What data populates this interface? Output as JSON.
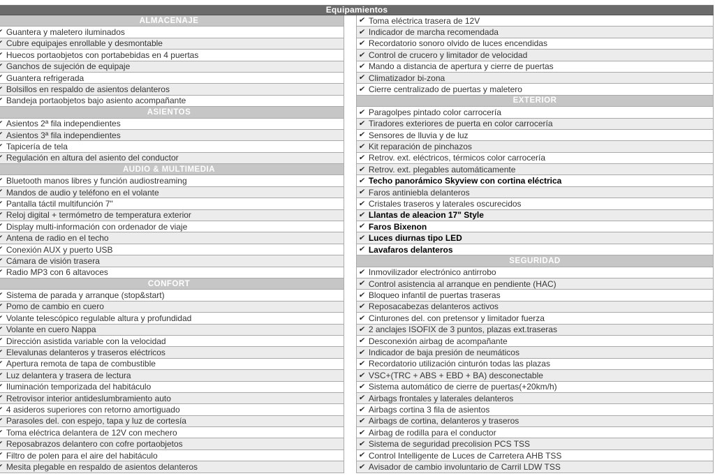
{
  "title": "Equipamientos",
  "check_icon": "✔",
  "colors": {
    "title_bar": "#6b6b6b",
    "section_header": "#c6c6c6",
    "row_white": "#ffffff",
    "row_alt": "#ececec",
    "border": "#a9a9a9",
    "title_text": "#ffffff",
    "item_text": "#353535"
  },
  "columns": {
    "left": [
      {
        "type": "section",
        "label": "ALMACENAJE"
      },
      {
        "type": "item",
        "label": "Guantera y maletero iluminados"
      },
      {
        "type": "item",
        "label": "Cubre equipajes enrollable y desmontable"
      },
      {
        "type": "item",
        "label": "Huecos portaobjetos con portabebidas en 4 puertas"
      },
      {
        "type": "item",
        "label": "Ganchos de sujeción de equipaje"
      },
      {
        "type": "item",
        "label": "Guantera refrigerada"
      },
      {
        "type": "item",
        "label": "Bolsillos en respaldo de asientos delanteros"
      },
      {
        "type": "item",
        "label": "Bandeja portaobjetos bajo asiento acompañante"
      },
      {
        "type": "section",
        "label": "ASIENTOS"
      },
      {
        "type": "item",
        "label": "Asientos 2ª fila independientes"
      },
      {
        "type": "item",
        "label": "Asientos 3ª fila independientes"
      },
      {
        "type": "item",
        "label": "Tapicería de tela"
      },
      {
        "type": "item",
        "label": "Regulación en altura del asiento del conductor"
      },
      {
        "type": "section",
        "label": "AUDIO & MULTIMEDIA"
      },
      {
        "type": "item",
        "label": "Bluetooth manos libres y función audiostreaming"
      },
      {
        "type": "item",
        "label": "Mandos de audio y teléfono en el volante"
      },
      {
        "type": "item",
        "label": "Pantalla táctil multifunción 7\""
      },
      {
        "type": "item",
        "label": "Reloj digital + termómetro de temperatura exterior"
      },
      {
        "type": "item",
        "label": "Display multi-información con ordenador de viaje"
      },
      {
        "type": "item",
        "label": "Antena de radio en el techo"
      },
      {
        "type": "item",
        "label": "Conexión AUX y puerto USB"
      },
      {
        "type": "item",
        "label": "Cámara de visión trasera"
      },
      {
        "type": "item",
        "label": "Radio MP3 con 6 altavoces"
      },
      {
        "type": "section",
        "label": "CONFORT"
      },
      {
        "type": "item",
        "label": "Sistema de parada y arranque (stop&start)"
      },
      {
        "type": "item",
        "label": "Pomo de cambio en cuero"
      },
      {
        "type": "item",
        "label": "Volante telescópico regulable altura y profundidad"
      },
      {
        "type": "item",
        "label": "Volante en cuero Nappa"
      },
      {
        "type": "item",
        "label": "Dirección asistida variable con la velocidad"
      },
      {
        "type": "item",
        "label": "Elevalunas delanteros y traseros eléctricos"
      },
      {
        "type": "item",
        "label": "Apertura remota de tapa de combustible"
      },
      {
        "type": "item",
        "label": "Luz delantera y trasera de lectura"
      },
      {
        "type": "item",
        "label": "Iluminación temporizada del habitáculo"
      },
      {
        "type": "item",
        "label": "Retrovisor interior antideslumbramiento auto"
      },
      {
        "type": "item",
        "label": "4 asideros superiores con retorno amortiguado"
      },
      {
        "type": "item",
        "label": "Parasoles del. con espejo, tapa y luz de cortesía"
      },
      {
        "type": "item",
        "label": "Toma eléctrica delantera de 12V con mechero"
      },
      {
        "type": "item",
        "label": "Reposabrazos delantero con cofre portaobjetos"
      },
      {
        "type": "item",
        "label": "Filtro de polen para el aire del habitáculo"
      },
      {
        "type": "item",
        "label": "Mesita plegable en respaldo de asientos delanteros"
      }
    ],
    "right": [
      {
        "type": "item",
        "label": "Toma eléctrica trasera de 12V"
      },
      {
        "type": "item",
        "label": "Indicador de marcha recomendada"
      },
      {
        "type": "item",
        "label": "Recordatorio sonoro olvido de luces encendidas"
      },
      {
        "type": "item",
        "label": "Control de crucero y limitador de velocidad"
      },
      {
        "type": "item",
        "label": "Mando a distancia de apertura y cierre de puertas"
      },
      {
        "type": "item",
        "label": "Climatizador bi-zona"
      },
      {
        "type": "item",
        "label": "Cierre centralizado de puertas y maletero"
      },
      {
        "type": "section",
        "label": "EXTERIOR"
      },
      {
        "type": "item",
        "label": "Paragolpes pintado color carrocería"
      },
      {
        "type": "item",
        "label": "Tiradores exteriores de puerta en color carrocería"
      },
      {
        "type": "item",
        "label": "Sensores de lluvia y de luz"
      },
      {
        "type": "item",
        "label": "Kit reparación de pinchazos"
      },
      {
        "type": "item",
        "label": "Retrov. ext. eléctricos, térmicos color carrocería"
      },
      {
        "type": "item",
        "label": "Retrov. ext. plegables automáticamente"
      },
      {
        "type": "item",
        "label": "Techo panorámico Skyview con cortina eléctrica",
        "bold": true
      },
      {
        "type": "item",
        "label": "Faros antiniebla delanteros"
      },
      {
        "type": "item",
        "label": "Cristales traseros y laterales oscurecidos"
      },
      {
        "type": "item",
        "label": "Llantas de aleacion 17\" Style",
        "bold": true
      },
      {
        "type": "item",
        "label": "Faros Bixenon",
        "bold": true
      },
      {
        "type": "item",
        "label": "Luces diurnas tipo LED",
        "bold": true
      },
      {
        "type": "item",
        "label": "Lavafaros delanteros",
        "bold": true
      },
      {
        "type": "section",
        "label": "SEGURIDAD"
      },
      {
        "type": "item",
        "label": "Inmovilizador electrónico antirrobo"
      },
      {
        "type": "item",
        "label": "Control asistencia al arranque en pendiente (HAC)"
      },
      {
        "type": "item",
        "label": "Bloqueo infantil de puertas traseras"
      },
      {
        "type": "item",
        "label": "Reposacabezas delanteros activos"
      },
      {
        "type": "item",
        "label": "Cinturones del. con pretensor y limitador fuerza"
      },
      {
        "type": "item",
        "label": "2 anclajes ISOFIX de 3 puntos, plazas ext.traseras"
      },
      {
        "type": "item",
        "label": "Desconexión airbag de acompañante"
      },
      {
        "type": "item",
        "label": "Indicador de baja presión de neumáticos"
      },
      {
        "type": "item",
        "label": "Recordatorio utilización cinturón todas las plazas"
      },
      {
        "type": "item",
        "label": "VSC+(TRC + ABS + EBD + BA) desconectable"
      },
      {
        "type": "item",
        "label": "Sistema automático de cierre de puertas(+20km/h)"
      },
      {
        "type": "item",
        "label": "Airbags frontales y laterales delanteros"
      },
      {
        "type": "item",
        "label": "Airbags cortina 3 fila de asientos"
      },
      {
        "type": "item",
        "label": "Airbags de cortina, delanteros y traseros"
      },
      {
        "type": "item",
        "label": "Airbag de rodilla para el conductor"
      },
      {
        "type": "item",
        "label": "Sistema de seguridad precolision PCS TSS"
      },
      {
        "type": "item",
        "label": "Control Intelligente de Luces de Carretera AHB TSS"
      },
      {
        "type": "item",
        "label": "Avisador de cambio involuntario de Carril LDW TSS"
      }
    ]
  }
}
